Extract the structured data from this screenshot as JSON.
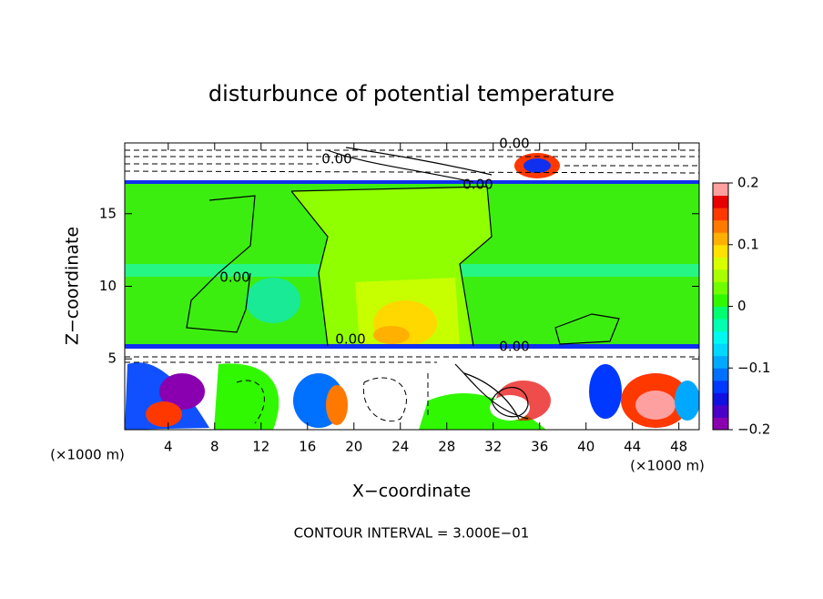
{
  "chart_data": {
    "type": "contour",
    "title": "disturbunce of potential temperature",
    "x_label": "X−coordinate",
    "y_label": "Z−coordinate",
    "x_unit": "(×1000 m)",
    "y_unit": "(×1000 m)",
    "note": "CONTOUR INTERVAL = 3.000E−01",
    "xlim": [
      0.25,
      49.75
    ],
    "ylim": [
      0.125,
      19.875
    ],
    "xticks": [
      4,
      8,
      12,
      16,
      20,
      24,
      28,
      32,
      36,
      40,
      44,
      48
    ],
    "yticks": [
      5,
      10,
      15
    ],
    "contour_labels": [
      "0.00",
      "0.00",
      "0.00",
      "0.00",
      "0.00",
      "0.00"
    ],
    "colorbar": {
      "lim": [
        -0.2,
        0.2
      ],
      "ticks": [
        {
          "value": -0.2,
          "label": "−0.2"
        },
        {
          "value": -0.1,
          "label": "−0.1"
        },
        0,
        0.1,
        0.2
      ],
      "colors": [
        "#8a00b0",
        "#4a00c8",
        "#1010e0",
        "#0038ff",
        "#0070ff",
        "#00a8ff",
        "#00d8ff",
        "#00f8f0",
        "#00ffb0",
        "#00ff70",
        "#30f800",
        "#70ff00",
        "#a8ff00",
        "#d8ff00",
        "#ffe000",
        "#ffb000",
        "#ff7800",
        "#ff3800",
        "#e80000",
        "#ffa0a0"
      ]
    }
  }
}
